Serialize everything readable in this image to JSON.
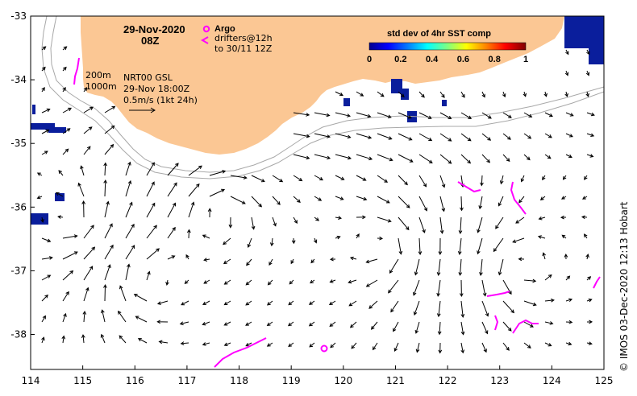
{
  "header": {
    "date": "29-Nov-2020",
    "time": "08Z"
  },
  "legend": {
    "argo_label": "Argo",
    "drifters_line1": "drifters@12h",
    "drifters_line2": "to 30/11 12Z",
    "argo_color": "#ff00ff",
    "drifter_color": "#ff00ff"
  },
  "annotation": {
    "contour_200": "200m",
    "contour_1000": "1000m",
    "product": "NRT00 GSL",
    "analysis_time": "29-Nov 18:00Z",
    "vector_scale": "0.5m/s (1kt 24h)"
  },
  "colorbar": {
    "title": "std dev of 4hr SST comp",
    "ticks": [
      "0",
      "0.2",
      "0.4",
      "0.6",
      "0.8",
      "1"
    ],
    "colors": [
      "#00008f",
      "#0000ff",
      "#0080ff",
      "#00ffff",
      "#80ff80",
      "#ffff00",
      "#ff8000",
      "#ff0000",
      "#800000"
    ]
  },
  "axes": {
    "x_ticks": [
      "114",
      "115",
      "116",
      "117",
      "118",
      "119",
      "120",
      "121",
      "122",
      "123",
      "124",
      "125"
    ],
    "y_ticks": [
      "-33",
      "-34",
      "-35",
      "-36",
      "-37",
      "-38"
    ],
    "lon_range": [
      114,
      125
    ],
    "lat_range": [
      -38.55,
      -33
    ]
  },
  "credit": "© IMOS 03-Dec-2020 12:13 Hobart",
  "colors": {
    "land": "#fbc794",
    "ocean": "#ffffff",
    "contour": "#a8a8a8",
    "arrow": "#000000"
  }
}
